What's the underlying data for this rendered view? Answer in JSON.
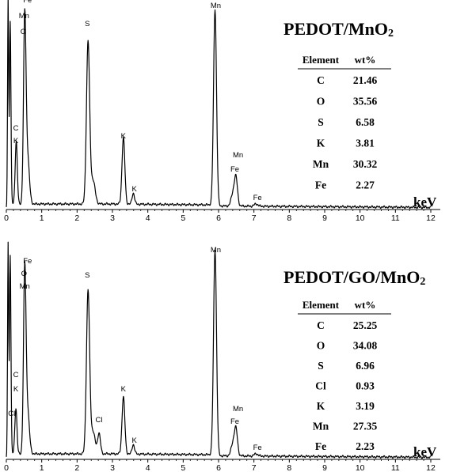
{
  "chart_data": [
    {
      "type": "line",
      "title": "PEDOT/MnO",
      "title_subscript": "2",
      "xlabel": "keV",
      "xlim": [
        0,
        12
      ],
      "x_ticks": [
        "0",
        "1",
        "2",
        "3",
        "4",
        "5",
        "6",
        "7",
        "8",
        "9",
        "10",
        "11",
        "12"
      ],
      "grid": false,
      "peaks": [
        {
          "x": 0.05,
          "y": 260,
          "w": 0.015
        },
        {
          "x": 0.11,
          "y": 232,
          "w": 0.02
        },
        {
          "x": 0.28,
          "y": 80,
          "w": 0.03
        },
        {
          "x": 0.52,
          "y": 230,
          "w": 0.035
        },
        {
          "x": 0.6,
          "y": 60,
          "w": 0.05
        },
        {
          "x": 2.31,
          "y": 205,
          "w": 0.045
        },
        {
          "x": 2.45,
          "y": 30,
          "w": 0.06
        },
        {
          "x": 3.31,
          "y": 84,
          "w": 0.04
        },
        {
          "x": 3.59,
          "y": 14,
          "w": 0.035
        },
        {
          "x": 5.9,
          "y": 248,
          "w": 0.042
        },
        {
          "x": 6.49,
          "y": 36,
          "w": 0.045
        },
        {
          "x": 6.4,
          "y": 14,
          "w": 0.05
        },
        {
          "x": 7.06,
          "y": 3,
          "w": 0.05
        }
      ],
      "peak_labels": [
        {
          "text": "Fe",
          "x": 0.6,
          "y": 262
        },
        {
          "text": "Mn",
          "x": 0.5,
          "y": 242
        },
        {
          "text": "O",
          "x": 0.48,
          "y": 222
        },
        {
          "text": "C",
          "x": 0.27,
          "y": 100
        },
        {
          "text": "K",
          "x": 0.27,
          "y": 84
        },
        {
          "text": "S",
          "x": 2.29,
          "y": 232
        },
        {
          "text": "K",
          "x": 3.31,
          "y": 90
        },
        {
          "text": "K",
          "x": 3.62,
          "y": 23
        },
        {
          "text": "Mn",
          "x": 5.92,
          "y": 255
        },
        {
          "text": "Mn",
          "x": 6.55,
          "y": 66
        },
        {
          "text": "Fe",
          "x": 6.46,
          "y": 48
        },
        {
          "text": "Fe",
          "x": 7.1,
          "y": 12
        }
      ],
      "table": {
        "headers": [
          "Element",
          "wt%"
        ],
        "rows": [
          [
            "C",
            "21.46"
          ],
          [
            "O",
            "35.56"
          ],
          [
            "S",
            "6.58"
          ],
          [
            "K",
            "3.81"
          ],
          [
            "Mn",
            "30.32"
          ],
          [
            "Fe",
            "2.27"
          ]
        ]
      }
    },
    {
      "type": "line",
      "title": "PEDOT/GO/MnO",
      "title_subscript": "2",
      "xlabel": "keV",
      "xlim": [
        0,
        12
      ],
      "x_ticks": [
        "0",
        "1",
        "2",
        "3",
        "4",
        "5",
        "6",
        "7",
        "8",
        "9",
        "10",
        "11",
        "12"
      ],
      "grid": false,
      "peaks": [
        {
          "x": 0.05,
          "y": 265,
          "w": 0.015
        },
        {
          "x": 0.11,
          "y": 252,
          "w": 0.02
        },
        {
          "x": 0.27,
          "y": 58,
          "w": 0.03
        },
        {
          "x": 0.52,
          "y": 228,
          "w": 0.035
        },
        {
          "x": 0.6,
          "y": 55,
          "w": 0.05
        },
        {
          "x": 2.31,
          "y": 206,
          "w": 0.045
        },
        {
          "x": 2.45,
          "y": 28,
          "w": 0.06
        },
        {
          "x": 2.62,
          "y": 26,
          "w": 0.04
        },
        {
          "x": 3.31,
          "y": 72,
          "w": 0.04
        },
        {
          "x": 3.59,
          "y": 12,
          "w": 0.035
        },
        {
          "x": 5.9,
          "y": 260,
          "w": 0.042
        },
        {
          "x": 6.49,
          "y": 34,
          "w": 0.045
        },
        {
          "x": 6.4,
          "y": 14,
          "w": 0.05
        },
        {
          "x": 7.06,
          "y": 3,
          "w": 0.05
        }
      ],
      "peak_labels": [
        {
          "text": "Fe",
          "x": 0.6,
          "y": 248
        },
        {
          "text": "O",
          "x": 0.5,
          "y": 232
        },
        {
          "text": "Mn",
          "x": 0.52,
          "y": 216
        },
        {
          "text": "C",
          "x": 0.27,
          "y": 104
        },
        {
          "text": "K",
          "x": 0.27,
          "y": 86
        },
        {
          "text": "Cl",
          "x": 0.15,
          "y": 55
        },
        {
          "text": "S",
          "x": 2.29,
          "y": 230
        },
        {
          "text": "Cl",
          "x": 2.62,
          "y": 47
        },
        {
          "text": "K",
          "x": 3.31,
          "y": 86
        },
        {
          "text": "K",
          "x": 3.62,
          "y": 21
        },
        {
          "text": "Mn",
          "x": 5.92,
          "y": 262
        },
        {
          "text": "Mn",
          "x": 6.55,
          "y": 61
        },
        {
          "text": "Fe",
          "x": 6.46,
          "y": 45
        },
        {
          "text": "Fe",
          "x": 7.1,
          "y": 12
        }
      ],
      "table": {
        "headers": [
          "Element",
          "wt%"
        ],
        "rows": [
          [
            "C",
            "25.25"
          ],
          [
            "O",
            "34.08"
          ],
          [
            "S",
            "6.96"
          ],
          [
            "Cl",
            "0.93"
          ],
          [
            "K",
            "3.19"
          ],
          [
            "Mn",
            "27.35"
          ],
          [
            "Fe",
            "2.23"
          ]
        ]
      }
    }
  ]
}
